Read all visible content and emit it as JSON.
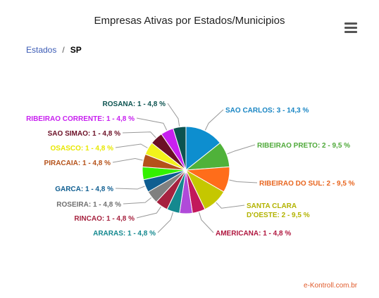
{
  "title": "Empresas Ativas por Estados/Municipios",
  "breadcrumb": {
    "root": "Estados",
    "separator": "/",
    "current": "SP"
  },
  "credits": "e-Kontroll.com.br",
  "menu_icon": "hamburger-menu-icon",
  "chart_data": {
    "type": "pie",
    "title": "Empresas Ativas por Estados/Municipios",
    "slices": [
      {
        "name": "SAO CARLOS",
        "value": 3,
        "percent": "14,3",
        "color": "#0d8ecf"
      },
      {
        "name": "RIBEIRAO PRETO",
        "value": 2,
        "percent": "9,5",
        "color": "#4fb23a"
      },
      {
        "name": "RIBEIRAO DO SUL",
        "value": 2,
        "percent": "9,5",
        "color": "#ff6d1a"
      },
      {
        "name": "SANTA CLARA D'OESTE",
        "value": 2,
        "percent": "9,5",
        "color": "#c5c700"
      },
      {
        "name": "AMERICANA",
        "value": 1,
        "percent": "4,8",
        "color": "#c2185b"
      },
      {
        "name": "?",
        "value": 1,
        "percent": "4,8",
        "color": "#b04ad9"
      },
      {
        "name": "ARARAS",
        "value": 1,
        "percent": "4,8",
        "color": "#14898f"
      },
      {
        "name": "RINCAO",
        "value": 1,
        "percent": "4,8",
        "color": "#a6223f"
      },
      {
        "name": "ROSEIRA",
        "value": 1,
        "percent": "4,8",
        "color": "#808080"
      },
      {
        "name": "GARCA",
        "value": 1,
        "percent": "4,8",
        "color": "#0f5e91"
      },
      {
        "name": "?",
        "value": 1,
        "percent": "4,8",
        "color": "#33f000"
      },
      {
        "name": "PIRACAIA",
        "value": 1,
        "percent": "4,8",
        "color": "#b5521a"
      },
      {
        "name": "OSASCO",
        "value": 1,
        "percent": "4,8",
        "color": "#f2f21c"
      },
      {
        "name": "SAO SIMAO",
        "value": 1,
        "percent": "4,8",
        "color": "#6b1026"
      },
      {
        "name": "RIBEIRAO CORRENTE",
        "value": 1,
        "percent": "4,8",
        "color": "#c820f0"
      },
      {
        "name": "ROSANA",
        "value": 1,
        "percent": "4,8",
        "color": "#0c5350"
      }
    ],
    "labels": [
      {
        "slice": 0,
        "text": "SAO CARLOS: 3 - 14,3 %",
        "color": "#1a86c4"
      },
      {
        "slice": 1,
        "text": "RIBEIRAO PRETO: 2 - 9,5 %",
        "color": "#4fa93a"
      },
      {
        "slice": 2,
        "text": "RIBEIRAO DO SUL: 2 - 9,5 %",
        "color": "#e8651e"
      },
      {
        "slice": 3,
        "text": "SANTA CLARA\nD'OESTE: 2 - 9,5 %",
        "color": "#b3b300"
      },
      {
        "slice": 4,
        "text": "AMERICANA: 1 - 4,8 %",
        "color": "#b0173f"
      },
      {
        "slice": 6,
        "text": "ARARAS: 1 - 4,8 %",
        "color": "#14898f"
      },
      {
        "slice": 7,
        "text": "RINCAO: 1 - 4,8 %",
        "color": "#a6223f"
      },
      {
        "slice": 8,
        "text": "ROSEIRA: 1 - 4,8 %",
        "color": "#707070"
      },
      {
        "slice": 9,
        "text": "GARCA: 1 - 4,8 %",
        "color": "#0f5e91"
      },
      {
        "slice": 11,
        "text": "PIRACAIA: 1 - 4,8 %",
        "color": "#b5521a"
      },
      {
        "slice": 12,
        "text": "OSASCO: 1 - 4,8 %",
        "color": "#e8e800"
      },
      {
        "slice": 13,
        "text": "SAO SIMAO: 1 - 4,8 %",
        "color": "#6b1026"
      },
      {
        "slice": 14,
        "text": "RIBEIRAO CORRENTE: 1 - 4,8 %",
        "color": "#c820f0"
      },
      {
        "slice": 15,
        "text": "ROSANA: 1 - 4,8 %",
        "color": "#0c5350"
      }
    ]
  }
}
